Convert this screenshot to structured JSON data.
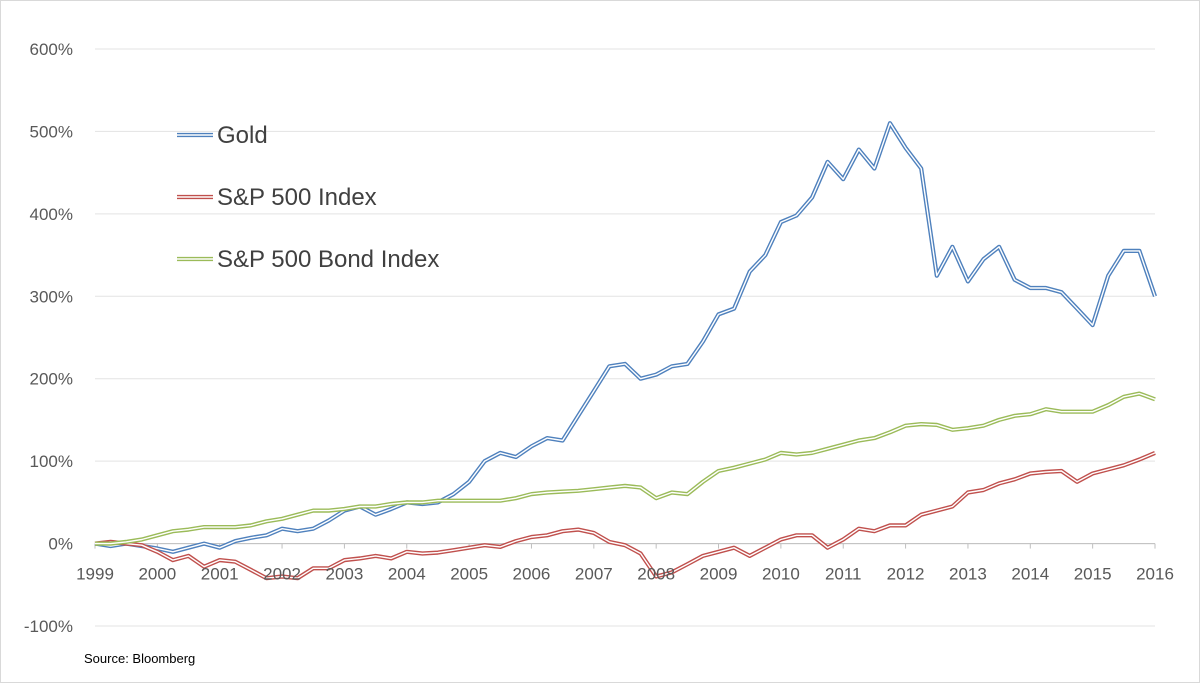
{
  "chart_data": {
    "type": "line",
    "title": "",
    "xlabel": "",
    "ylabel": "",
    "ylim": [
      -100,
      600
    ],
    "xlim": [
      1999,
      2016
    ],
    "y_ticks": [
      600,
      500,
      400,
      300,
      200,
      100,
      0,
      -100
    ],
    "y_tick_labels": [
      "600%",
      "500%",
      "400%",
      "300%",
      "200%",
      "100%",
      "0%",
      "-100%"
    ],
    "x_ticks": [
      1999,
      2000,
      2001,
      2002,
      2003,
      2004,
      2005,
      2006,
      2007,
      2008,
      2009,
      2010,
      2011,
      2012,
      2013,
      2014,
      2015,
      2016
    ],
    "x_tick_labels": [
      "1999",
      "2000",
      "2001",
      "2002",
      "2003",
      "2004",
      "2005",
      "2006",
      "2007",
      "2008",
      "2009",
      "2010",
      "2011",
      "2012",
      "2013",
      "2014",
      "2015",
      "2016"
    ],
    "grid": "horizontal",
    "legend_position": "top-left",
    "series": [
      {
        "name": "Gold",
        "color": "#4f81bd",
        "x": [
          1999.0,
          1999.25,
          1999.5,
          1999.75,
          2000.0,
          2000.25,
          2000.5,
          2000.75,
          2001.0,
          2001.25,
          2001.5,
          2001.75,
          2002.0,
          2002.25,
          2002.5,
          2002.75,
          2003.0,
          2003.25,
          2003.5,
          2003.75,
          2004.0,
          2004.25,
          2004.5,
          2004.75,
          2005.0,
          2005.25,
          2005.5,
          2005.75,
          2006.0,
          2006.25,
          2006.5,
          2006.75,
          2007.0,
          2007.25,
          2007.5,
          2007.75,
          2008.0,
          2008.25,
          2008.5,
          2008.75,
          2009.0,
          2009.25,
          2009.5,
          2009.75,
          2010.0,
          2010.25,
          2010.5,
          2010.75,
          2011.0,
          2011.25,
          2011.5,
          2011.75,
          2012.0,
          2012.25,
          2012.5,
          2012.75,
          2013.0,
          2013.25,
          2013.5,
          2013.75,
          2014.0,
          2014.25,
          2014.5,
          2014.75,
          2015.0,
          2015.25,
          2015.5,
          2015.75,
          2016.0
        ],
        "values": [
          0,
          -3,
          0,
          -3,
          -6,
          -10,
          -5,
          0,
          -5,
          3,
          7,
          10,
          18,
          15,
          18,
          28,
          40,
          45,
          35,
          42,
          50,
          48,
          50,
          60,
          75,
          100,
          110,
          105,
          118,
          128,
          125,
          155,
          185,
          215,
          218,
          200,
          205,
          215,
          218,
          245,
          278,
          285,
          330,
          350,
          390,
          398,
          420,
          463,
          442,
          478,
          455,
          510,
          480,
          455,
          325,
          360,
          318,
          345,
          360,
          320,
          310,
          310,
          305,
          285,
          265,
          325,
          355,
          355,
          300
        ]
      },
      {
        "name": "S&P 500 Index",
        "color": "#c0504d",
        "x": [
          1999.0,
          1999.25,
          1999.5,
          1999.75,
          2000.0,
          2000.25,
          2000.5,
          2000.75,
          2001.0,
          2001.25,
          2001.5,
          2001.75,
          2002.0,
          2002.25,
          2002.5,
          2002.75,
          2003.0,
          2003.25,
          2003.5,
          2003.75,
          2004.0,
          2004.25,
          2004.5,
          2004.75,
          2005.0,
          2005.25,
          2005.5,
          2005.75,
          2006.0,
          2006.25,
          2006.5,
          2006.75,
          2007.0,
          2007.25,
          2007.5,
          2007.75,
          2008.0,
          2008.25,
          2008.5,
          2008.75,
          2009.0,
          2009.25,
          2009.5,
          2009.75,
          2010.0,
          2010.25,
          2010.5,
          2010.75,
          2011.0,
          2011.25,
          2011.5,
          2011.75,
          2012.0,
          2012.25,
          2012.5,
          2012.75,
          2013.0,
          2013.25,
          2013.5,
          2013.75,
          2014.0,
          2014.25,
          2014.5,
          2014.75,
          2015.0,
          2015.25,
          2015.5,
          2015.75,
          2016.0
        ],
        "values": [
          0,
          2,
          0,
          -2,
          -10,
          -20,
          -15,
          -28,
          -20,
          -22,
          -32,
          -42,
          -40,
          -42,
          -30,
          -30,
          -20,
          -18,
          -15,
          -18,
          -10,
          -12,
          -11,
          -8,
          -5,
          -2,
          -4,
          3,
          8,
          10,
          15,
          17,
          13,
          2,
          -2,
          -12,
          -40,
          -35,
          -25,
          -15,
          -10,
          -5,
          -15,
          -5,
          5,
          10,
          10,
          -5,
          5,
          18,
          15,
          22,
          22,
          35,
          40,
          45,
          62,
          65,
          73,
          78,
          85,
          87,
          88,
          75,
          85,
          90,
          95,
          102,
          110
        ]
      },
      {
        "name": "S&P 500 Bond Index",
        "color": "#9bbb59",
        "x": [
          1999.0,
          1999.25,
          1999.5,
          1999.75,
          2000.0,
          2000.25,
          2000.5,
          2000.75,
          2001.0,
          2001.25,
          2001.5,
          2001.75,
          2002.0,
          2002.25,
          2002.5,
          2002.75,
          2003.0,
          2003.25,
          2003.5,
          2003.75,
          2004.0,
          2004.25,
          2004.5,
          2004.75,
          2005.0,
          2005.25,
          2005.5,
          2005.75,
          2006.0,
          2006.25,
          2006.5,
          2006.75,
          2007.0,
          2007.25,
          2007.5,
          2007.75,
          2008.0,
          2008.25,
          2008.5,
          2008.75,
          2009.0,
          2009.25,
          2009.5,
          2009.75,
          2010.0,
          2010.25,
          2010.5,
          2010.75,
          2011.0,
          2011.25,
          2011.5,
          2011.75,
          2012.0,
          2012.25,
          2012.5,
          2012.75,
          2013.0,
          2013.25,
          2013.5,
          2013.75,
          2014.0,
          2014.25,
          2014.5,
          2014.75,
          2015.0,
          2015.25,
          2015.5,
          2015.75,
          2016.0
        ],
        "values": [
          0,
          0,
          2,
          5,
          10,
          15,
          17,
          20,
          20,
          20,
          22,
          27,
          30,
          35,
          40,
          40,
          42,
          45,
          45,
          48,
          50,
          50,
          52,
          52,
          52,
          52,
          52,
          55,
          60,
          62,
          63,
          64,
          66,
          68,
          70,
          68,
          55,
          62,
          60,
          75,
          88,
          92,
          97,
          102,
          110,
          108,
          110,
          115,
          120,
          125,
          128,
          135,
          143,
          145,
          144,
          138,
          140,
          143,
          150,
          155,
          157,
          163,
          160,
          160,
          160,
          168,
          178,
          182,
          175
        ]
      }
    ]
  },
  "source_note": "Source: Bloomberg"
}
